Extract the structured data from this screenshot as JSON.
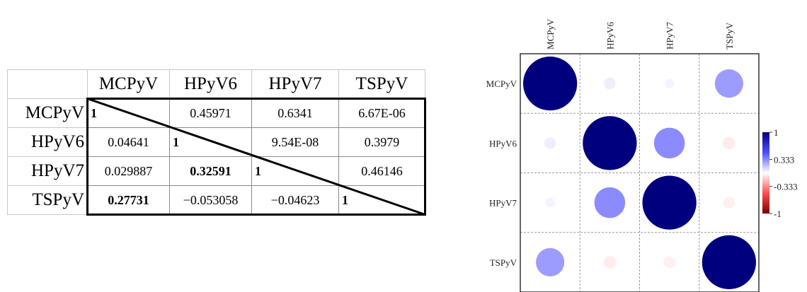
{
  "table": {
    "columns": [
      "MCPyV",
      "HPyV6",
      "HPyV7",
      "TSPyV"
    ],
    "rows": [
      {
        "label": "MCPyV",
        "cells": [
          {
            "v": "1",
            "diag": true
          },
          {
            "v": "0.45971"
          },
          {
            "v": "0.6341"
          },
          {
            "v": "6.67E-06"
          }
        ]
      },
      {
        "label": "HPyV6",
        "cells": [
          {
            "v": "0.04641"
          },
          {
            "v": "1",
            "diag": true
          },
          {
            "v": "9.54E-08"
          },
          {
            "v": "0.3979"
          }
        ]
      },
      {
        "label": "HPyV7",
        "cells": [
          {
            "v": "0.029887"
          },
          {
            "v": "0.32591",
            "bold": true
          },
          {
            "v": "1",
            "diag": true
          },
          {
            "v": "0.46146"
          }
        ]
      },
      {
        "label": "TSPyV",
        "cells": [
          {
            "v": "0.27731",
            "bold": true
          },
          {
            "v": "−0.053058"
          },
          {
            "v": "−0.04623"
          },
          {
            "v": "1",
            "diag": true
          }
        ]
      }
    ]
  },
  "chart_data": {
    "type": "heatmap",
    "subtype": "correlation-circles",
    "variables": [
      "MCPyV",
      "HPyV6",
      "HPyV7",
      "TSPyV"
    ],
    "matrix": [
      [
        1,
        0.04641,
        0.029887,
        0.27731
      ],
      [
        0.04641,
        1,
        0.32591,
        -0.053058
      ],
      [
        0.029887,
        0.32591,
        1,
        -0.04623
      ],
      [
        0.27731,
        -0.053058,
        -0.04623,
        1
      ]
    ],
    "color_scale": {
      "ticks": [
        "1",
        "0.333",
        "-0.333",
        "-1"
      ],
      "positive_color": "#00007f",
      "mid_color": "#ffffff",
      "negative_color": "#7f0000"
    }
  }
}
